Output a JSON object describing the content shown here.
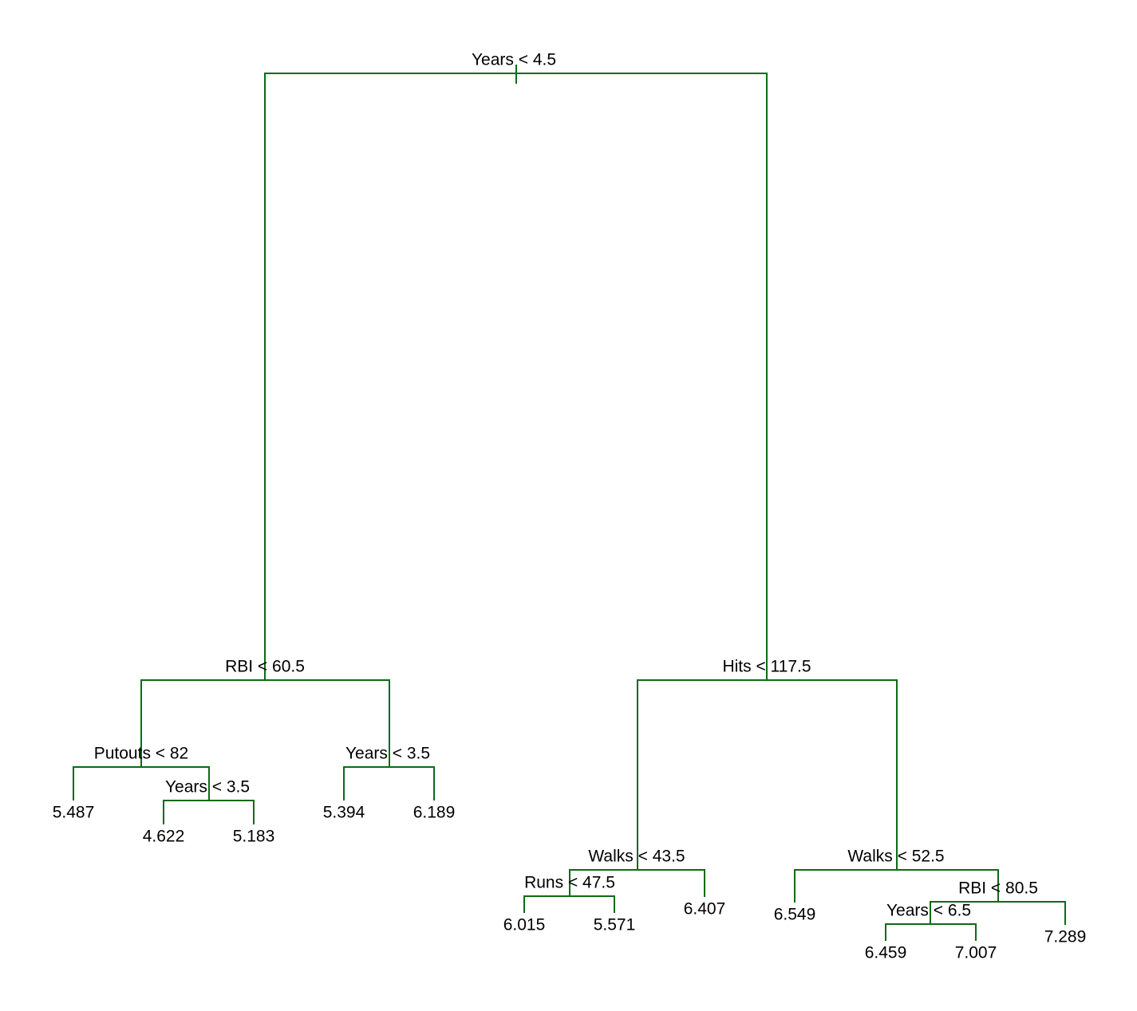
{
  "nodes": [
    {
      "label": "Years < 4.5"
    },
    {
      "label": "RBI < 60.5"
    },
    {
      "label": "Hits < 117.5"
    },
    {
      "label": "Putouts < 82"
    },
    {
      "label": "Years < 3.5"
    },
    {
      "label": "Years < 3.5"
    },
    {
      "label": "Walks < 43.5"
    },
    {
      "label": "Runs < 47.5"
    },
    {
      "label": "Walks < 52.5"
    },
    {
      "label": "RBI < 80.5"
    },
    {
      "label": "Years < 6.5"
    }
  ],
  "leaves": [
    "5.487",
    "4.622",
    "5.183",
    "5.394",
    "6.189",
    "6.015",
    "5.571",
    "6.407",
    "6.549",
    "6.459",
    "7.007",
    "7.289"
  ]
}
